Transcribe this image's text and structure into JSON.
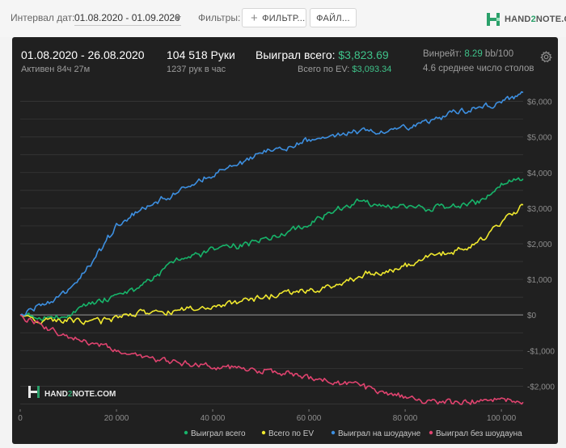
{
  "toolbar": {
    "date_label": "Интервал дат:",
    "date_value": "01.08.2020 - 01.09.2020",
    "filters_label": "Фильтры:",
    "filter_button": "ФИЛЬТР...",
    "file_button": "ФАЙЛ...",
    "brand_a": "HAND",
    "brand_b": "2",
    "brand_c": "NOTE.COM"
  },
  "summary": {
    "range": "01.08.2020 - 26.08.2020",
    "active": "Активен 84ч 27м",
    "hands": "104 518 Руки",
    "hands_per_hour": "1237 рук в час",
    "won_label": "Выиграл всего:",
    "won_value": "$3,823.69",
    "ev_label": "Всего по EV:",
    "ev_value": "$3,093.34",
    "winrate_label": "Винрейт:",
    "winrate_value": "8.29",
    "winrate_unit": "bb/100",
    "tables": "4.6 среднее число столов"
  },
  "watermark": {
    "a": "HAND",
    "b": "2",
    "c": "NOTE.COM"
  },
  "colors": {
    "won": "#17b46a",
    "ev": "#f0e92e",
    "showdown": "#3d8fe0",
    "no_showdown": "#e0436f",
    "zero_line": "#9a9a9a",
    "grid": "#3b3b3b"
  },
  "chart_data": {
    "type": "line",
    "x_ticks": [
      0,
      20000,
      40000,
      60000,
      80000,
      100000
    ],
    "x_tick_labels": [
      "0",
      "20 000",
      "40 000",
      "60 000",
      "80 000",
      "100 000"
    ],
    "xlim": [
      0,
      104518
    ],
    "y_ticks": [
      -2000,
      -1000,
      0,
      1000,
      2000,
      3000,
      4000,
      5000,
      6000
    ],
    "y_tick_labels": [
      "-$2,000",
      "-$1,000",
      "$0",
      "$1,000",
      "$2,000",
      "$3,000",
      "$4,000",
      "$5,000",
      "$6,000"
    ],
    "ylim": [
      -2650,
      6400
    ],
    "grid": true,
    "legend_position": "bottom-right",
    "series": [
      {
        "name": "Выиграл всего",
        "key": "won",
        "x": [
          0,
          5000,
          10000,
          15000,
          20000,
          25000,
          30000,
          35000,
          40000,
          45000,
          50000,
          55000,
          60000,
          65000,
          70000,
          75000,
          80000,
          85000,
          90000,
          95000,
          100000,
          104518
        ],
        "y": [
          0,
          -50,
          0,
          350,
          500,
          800,
          1300,
          1650,
          1800,
          1950,
          2100,
          2250,
          2600,
          2850,
          3200,
          3050,
          3050,
          3000,
          3050,
          3150,
          3650,
          3823.69
        ]
      },
      {
        "name": "Всего по EV",
        "key": "ev",
        "x": [
          0,
          5000,
          10000,
          15000,
          20000,
          25000,
          30000,
          35000,
          40000,
          45000,
          50000,
          55000,
          60000,
          65000,
          70000,
          75000,
          80000,
          85000,
          90000,
          95000,
          100000,
          104518
        ],
        "y": [
          0,
          -200,
          -150,
          -200,
          -100,
          50,
          50,
          200,
          250,
          350,
          500,
          600,
          700,
          800,
          1100,
          1200,
          1400,
          1650,
          1750,
          2000,
          2600,
          3093.34
        ]
      },
      {
        "name": "Выиграл на шоудауне",
        "key": "showdown",
        "x": [
          0,
          5000,
          10000,
          15000,
          20000,
          25000,
          30000,
          35000,
          40000,
          45000,
          50000,
          55000,
          60000,
          65000,
          70000,
          75000,
          80000,
          85000,
          90000,
          95000,
          100000,
          104518
        ],
        "y": [
          0,
          300,
          650,
          1500,
          2500,
          2900,
          3300,
          3600,
          3950,
          4250,
          4500,
          4650,
          4900,
          5050,
          5150,
          5150,
          5250,
          5450,
          5700,
          5800,
          6000,
          6250
        ]
      },
      {
        "name": "Выиграл без шоудауна",
        "key": "no_showdown",
        "x": [
          0,
          5000,
          10000,
          15000,
          20000,
          25000,
          30000,
          35000,
          40000,
          45000,
          50000,
          55000,
          60000,
          65000,
          70000,
          75000,
          80000,
          85000,
          90000,
          95000,
          100000,
          104518
        ],
        "y": [
          0,
          -350,
          -600,
          -800,
          -1000,
          -1150,
          -1300,
          -1350,
          -1450,
          -1500,
          -1550,
          -1600,
          -1750,
          -1900,
          -2000,
          -2150,
          -2350,
          -2450,
          -2450,
          -2450,
          -2400,
          -2450
        ]
      }
    ]
  }
}
